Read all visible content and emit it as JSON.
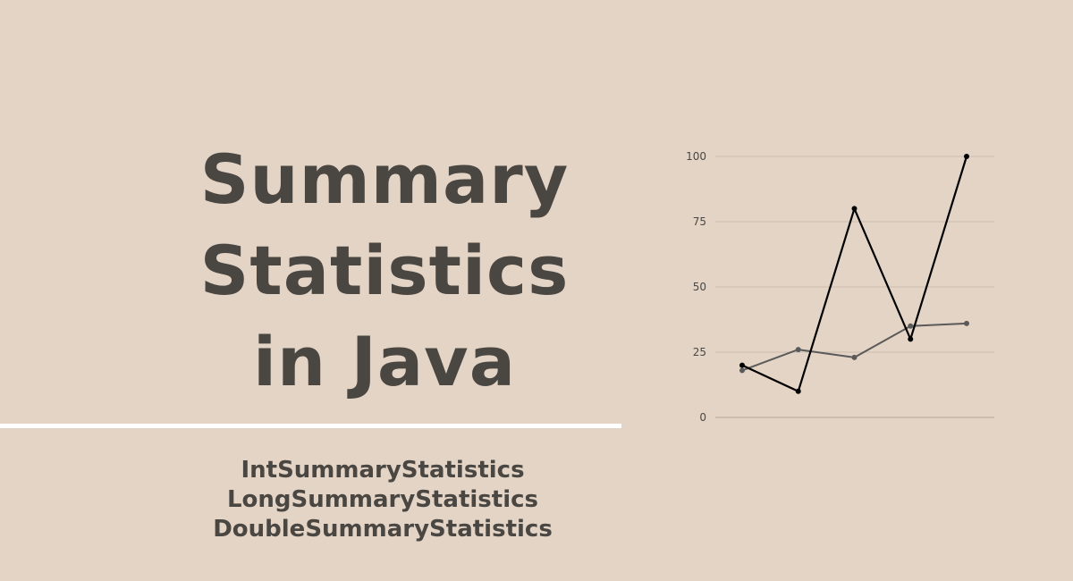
{
  "title": {
    "lines": [
      "Summary",
      "Statistics",
      "in Java"
    ]
  },
  "classes": [
    "IntSummaryStatistics",
    "LongSummaryStatistics",
    "DoubleSummaryStatistics"
  ],
  "colors": {
    "background": "#e4d4c5",
    "text": "#4a4743",
    "divider": "#ffffff",
    "series_dark": "#000000",
    "series_gray": "#5a5a5a",
    "grid": "#cbbcae"
  },
  "chart_data": {
    "type": "line",
    "x": [
      1,
      2,
      3,
      4,
      5
    ],
    "series": [
      {
        "values": [
          20,
          10,
          80,
          30,
          100
        ]
      },
      {
        "values": [
          18,
          26,
          23,
          35,
          36
        ]
      }
    ],
    "yticks": [
      "0",
      "25",
      "50",
      "75",
      "100"
    ],
    "ylim": [
      0,
      100
    ],
    "grid": true,
    "xlabel": "",
    "ylabel": ""
  }
}
